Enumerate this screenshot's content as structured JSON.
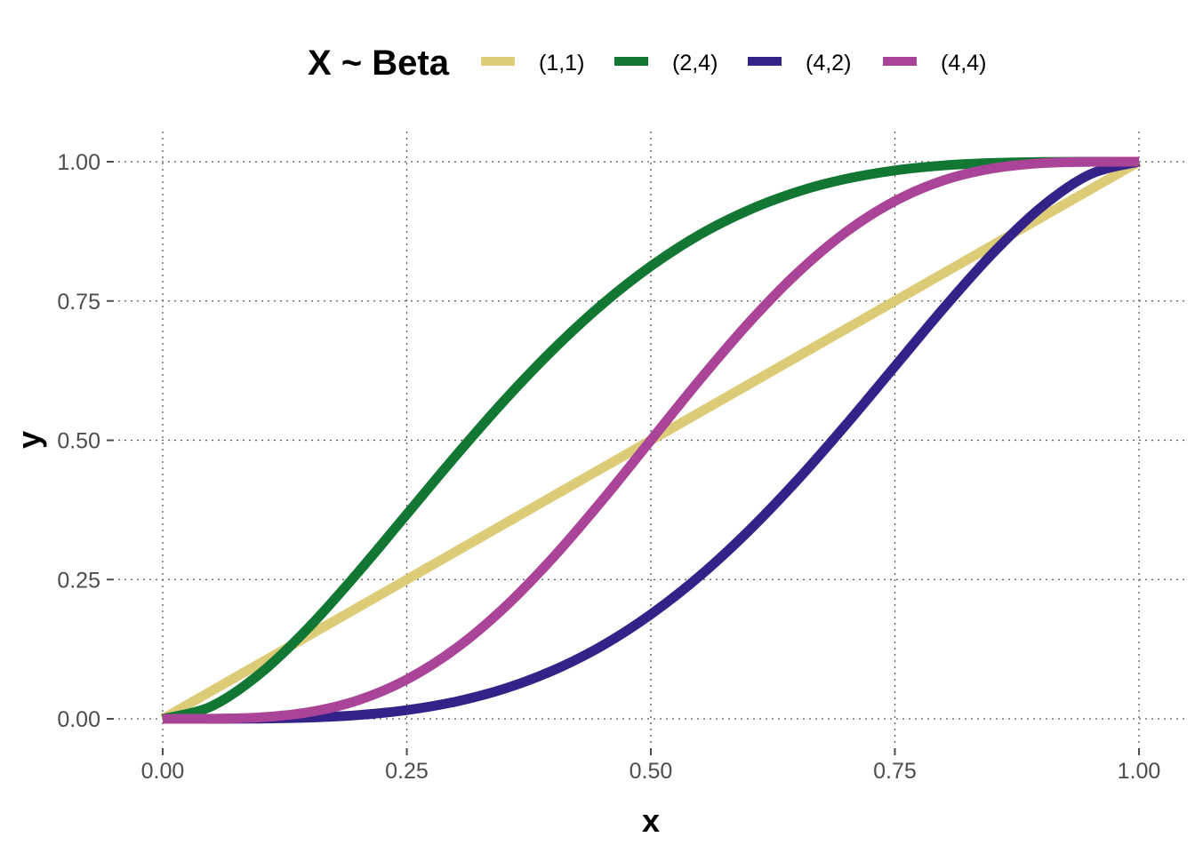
{
  "chart_data": {
    "type": "line",
    "title": "",
    "xlabel": "x",
    "ylabel": "y",
    "xlim": [
      0,
      1
    ],
    "ylim": [
      0,
      1
    ],
    "x_ticks": [
      "0.00",
      "0.25",
      "0.50",
      "0.75",
      "1.00"
    ],
    "y_ticks": [
      "0.00",
      "0.25",
      "0.50",
      "0.75",
      "1.00"
    ],
    "grid": true,
    "legend": {
      "title": "X ~ Beta",
      "placement": "top"
    },
    "x": [
      0,
      0.05,
      0.1,
      0.15,
      0.2,
      0.25,
      0.3,
      0.35,
      0.4,
      0.45,
      0.5,
      0.55,
      0.6,
      0.65,
      0.7,
      0.75,
      0.8,
      0.85,
      0.9,
      0.95,
      1
    ],
    "series": [
      {
        "name": "(1,1)",
        "color": "#DDCC77",
        "values": [
          0,
          0.05,
          0.1,
          0.15,
          0.2,
          0.25,
          0.3,
          0.35,
          0.4,
          0.45,
          0.5,
          0.55,
          0.6,
          0.65,
          0.7,
          0.75,
          0.8,
          0.85,
          0.9,
          0.95,
          1
        ]
      },
      {
        "name": "(2,4)",
        "color": "#117733",
        "values": [
          0,
          0.0226,
          0.0815,
          0.1648,
          0.2627,
          0.3672,
          0.4718,
          0.5716,
          0.663,
          0.7438,
          0.8125,
          0.869,
          0.913,
          0.946,
          0.9692,
          0.9844,
          0.9933,
          0.9978,
          0.9995,
          1.0,
          1.0
        ]
      },
      {
        "name": "(4,2)",
        "color": "#332288",
        "values": [
          0,
          0.0,
          0.0005,
          0.0022,
          0.0067,
          0.0156,
          0.0308,
          0.054,
          0.087,
          0.131,
          0.1875,
          0.2562,
          0.337,
          0.4284,
          0.5282,
          0.6328,
          0.7373,
          0.8352,
          0.9185,
          0.9774,
          1.0
        ]
      },
      {
        "name": "(4,4)",
        "color": "#AA4499",
        "values": [
          0,
          0.0002,
          0.0027,
          0.0121,
          0.0333,
          0.0706,
          0.126,
          0.1998,
          0.2898,
          0.3917,
          0.5,
          0.6083,
          0.7102,
          0.8002,
          0.874,
          0.9294,
          0.9667,
          0.9879,
          0.9973,
          0.9998,
          1.0
        ]
      }
    ]
  }
}
